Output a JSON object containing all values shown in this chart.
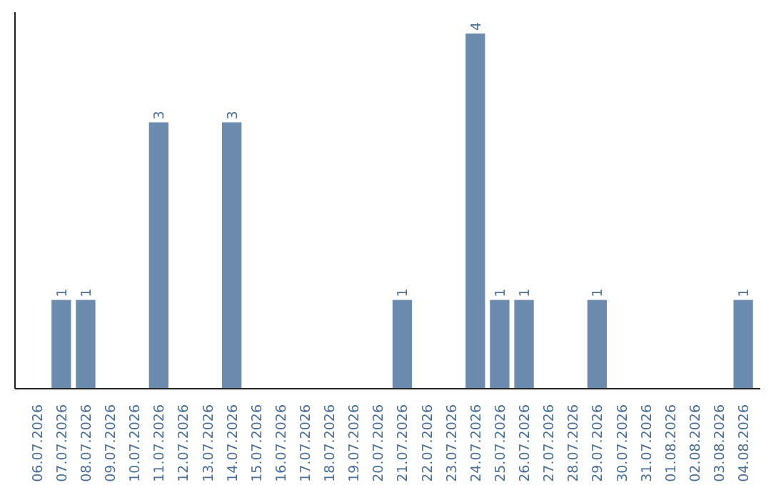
{
  "chart_data": {
    "type": "bar",
    "categories": [
      "06.07.2026",
      "07.07.2026",
      "08.07.2026",
      "09.07.2026",
      "10.07.2026",
      "11.07.2026",
      "12.07.2026",
      "13.07.2026",
      "14.07.2026",
      "15.07.2026",
      "16.07.2026",
      "17.07.2026",
      "18.07.2026",
      "19.07.2026",
      "20.07.2026",
      "21.07.2026",
      "22.07.2026",
      "23.07.2026",
      "24.07.2026",
      "25.07.2026",
      "26.07.2026",
      "27.07.2026",
      "28.07.2026",
      "29.07.2026",
      "30.07.2026",
      "31.07.2026",
      "01.08.2026",
      "02.08.2026",
      "03.08.2026",
      "04.08.2026"
    ],
    "values": [
      0,
      1,
      1,
      0,
      0,
      3,
      0,
      0,
      3,
      0,
      0,
      0,
      0,
      0,
      0,
      1,
      0,
      0,
      4,
      1,
      1,
      0,
      0,
      1,
      0,
      0,
      0,
      0,
      0,
      1
    ],
    "value_labels": [
      null,
      "1",
      "1",
      null,
      null,
      "3",
      null,
      null,
      "3",
      null,
      null,
      null,
      null,
      null,
      null,
      "1",
      null,
      null,
      "4",
      "1",
      "1",
      null,
      null,
      "1",
      null,
      null,
      null,
      null,
      null,
      "1"
    ],
    "color": "#6b8cae",
    "grid": false
  }
}
